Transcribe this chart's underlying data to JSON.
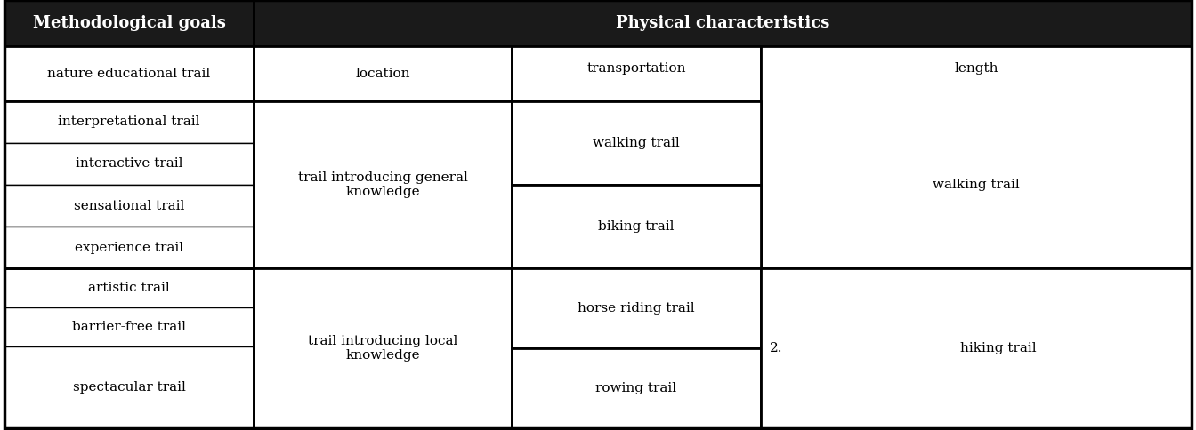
{
  "header_bg": "#1a1a1a",
  "header_text_color": "#ffffff",
  "col1_header": "Methodological goals",
  "col234_header": "Physical characteristics",
  "font_size": 11,
  "header_font_size": 13,
  "col1_items_g2": [
    "interpretational trail",
    "interactive trail",
    "sensational trail",
    "experience trail"
  ],
  "col1_items_g3": [
    "artistic trail",
    "barrier-free trail",
    "spectacular trail"
  ],
  "col2_g1": "location",
  "col2_g2": "trail introducing general\nknowledge",
  "col2_g3": "trail introducing local\nknowledge",
  "col3_row1_label": "transportation",
  "col3_g2a": "walking trail",
  "col3_g2b": "biking trail",
  "col3_g3a": "horse riding trail",
  "col3_g3b": "rowing trail",
  "col4_row1_label": "length",
  "col4_g2": "walking trail",
  "col4_g3_prefix": "2.",
  "col4_g3": "hiking trail",
  "col1_g1": "nature educational trail"
}
